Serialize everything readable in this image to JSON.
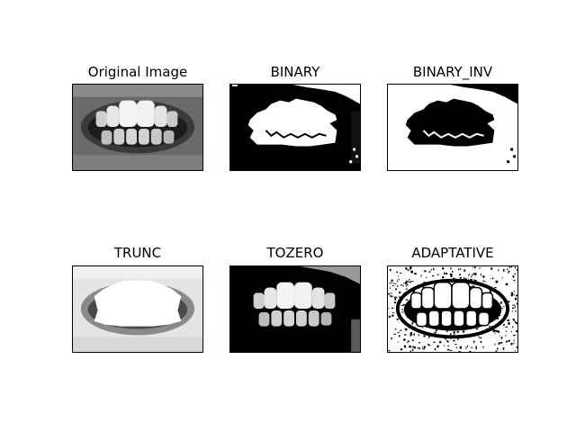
{
  "figure": {
    "panels": [
      {
        "title": "Original Image",
        "icon": "teeth-grayscale-photo"
      },
      {
        "title": "BINARY",
        "icon": "teeth-binary-threshold"
      },
      {
        "title": "BINARY_INV",
        "icon": "teeth-binary-inverted-threshold"
      },
      {
        "title": "TRUNC",
        "icon": "teeth-truncated-threshold"
      },
      {
        "title": "TOZERO",
        "icon": "teeth-tozero-threshold"
      },
      {
        "title": "ADAPTATIVE",
        "icon": "teeth-adaptive-threshold"
      }
    ]
  }
}
